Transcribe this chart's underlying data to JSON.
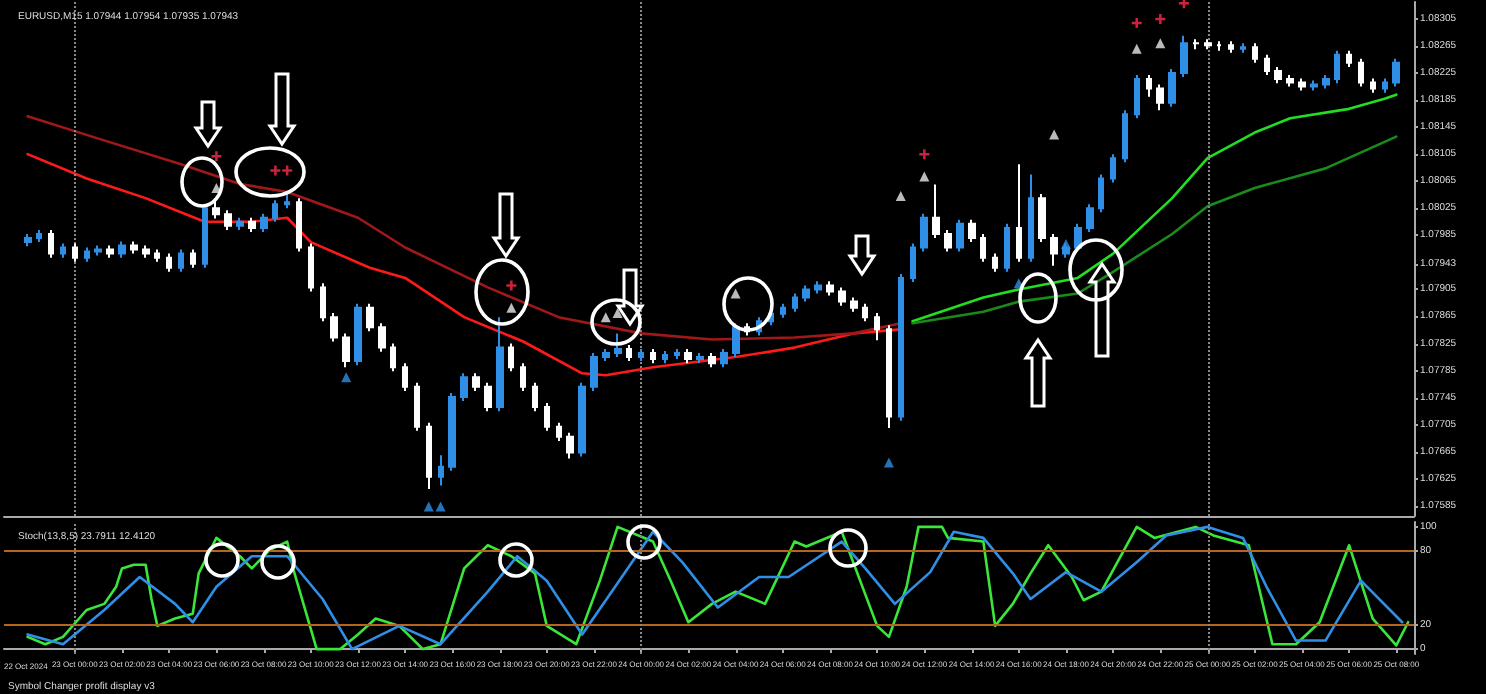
{
  "chart_data": [
    {
      "type": "candlestick",
      "title": "EURUSD,M15 1.07944 1.07954 1.07935 1.07943",
      "x": [
        "2024-10-22T22:00",
        "2024-10-22T22:30",
        "2024-10-22T23:00",
        "2024-10-22T23:30",
        "2024-10-23T00:00",
        "2024-10-23T00:30",
        "2024-10-23T01:00",
        "2024-10-23T01:30",
        "2024-10-23T02:00",
        "2024-10-23T02:30",
        "2024-10-23T03:00",
        "2024-10-23T03:30",
        "2024-10-23T04:00",
        "2024-10-23T04:30",
        "2024-10-23T05:00",
        "2024-10-23T05:30",
        "2024-10-23T06:00",
        "2024-10-23T06:30",
        "2024-10-23T07:00",
        "2024-10-23T07:30",
        "2024-10-23T08:00",
        "2024-10-23T08:30",
        "2024-10-23T09:00",
        "2024-10-23T09:30",
        "2024-10-23T10:00",
        "2024-10-23T10:30",
        "2024-10-23T11:00",
        "2024-10-23T11:30",
        "2024-10-23T12:00",
        "2024-10-23T12:30",
        "2024-10-23T13:00",
        "2024-10-23T13:30",
        "2024-10-23T14:00",
        "2024-10-23T14:30",
        "2024-10-23T15:00",
        "2024-10-23T15:30",
        "2024-10-23T16:00",
        "2024-10-23T16:30",
        "2024-10-23T17:00",
        "2024-10-23T17:30",
        "2024-10-23T18:00",
        "2024-10-23T18:30",
        "2024-10-23T19:00",
        "2024-10-23T19:30",
        "2024-10-23T20:00",
        "2024-10-23T20:30",
        "2024-10-23T21:00",
        "2024-10-23T21:30",
        "2024-10-23T22:00",
        "2024-10-23T22:30",
        "2024-10-23T23:00",
        "2024-10-23T23:30",
        "2024-10-24T00:00",
        "2024-10-24T00:30",
        "2024-10-24T01:00",
        "2024-10-24T01:30",
        "2024-10-24T02:00",
        "2024-10-24T02:30",
        "2024-10-24T03:00",
        "2024-10-24T03:30",
        "2024-10-24T04:00",
        "2024-10-24T04:30",
        "2024-10-24T05:00",
        "2024-10-24T05:30",
        "2024-10-24T06:00",
        "2024-10-24T06:30",
        "2024-10-24T07:00",
        "2024-10-24T07:30",
        "2024-10-24T08:00",
        "2024-10-24T08:30",
        "2024-10-24T09:00",
        "2024-10-24T09:30",
        "2024-10-24T10:00",
        "2024-10-24T10:30",
        "2024-10-24T11:00",
        "2024-10-24T11:30",
        "2024-10-24T12:00",
        "2024-10-24T12:30",
        "2024-10-24T13:00",
        "2024-10-24T13:30",
        "2024-10-24T14:00",
        "2024-10-24T14:30",
        "2024-10-24T15:00",
        "2024-10-24T15:30",
        "2024-10-24T16:00",
        "2024-10-24T16:30",
        "2024-10-24T17:00",
        "2024-10-24T17:30",
        "2024-10-24T18:00",
        "2024-10-24T18:30",
        "2024-10-24T19:00",
        "2024-10-24T19:30",
        "2024-10-24T20:00",
        "2024-10-24T20:30",
        "2024-10-24T21:00",
        "2024-10-24T21:30",
        "2024-10-24T22:00",
        "2024-10-24T22:30",
        "2024-10-24T23:00",
        "2024-10-24T23:30",
        "2024-10-25T00:00",
        "2024-10-25T00:30",
        "2024-10-25T01:00",
        "2024-10-25T01:30",
        "2024-10-25T02:00",
        "2024-10-25T02:30",
        "2024-10-25T03:00",
        "2024-10-25T03:30",
        "2024-10-25T04:00",
        "2024-10-25T04:30",
        "2024-10-25T05:00",
        "2024-10-25T05:30",
        "2024-10-25T06:00",
        "2024-10-25T06:30",
        "2024-10-25T07:00",
        "2024-10-25T07:30",
        "2024-10-25T08:00"
      ],
      "ohlc": [
        [
          1.07975,
          1.07987,
          1.07969,
          1.07981
        ],
        [
          1.07981,
          1.07993,
          1.07975,
          1.07987
        ],
        [
          1.07987,
          1.07993,
          1.07952,
          1.07958
        ],
        [
          1.07958,
          1.07973,
          1.07952,
          1.07967
        ],
        [
          1.07967,
          1.07973,
          1.07946,
          1.07952
        ],
        [
          1.07952,
          1.07967,
          1.07946,
          1.07961
        ],
        [
          1.07961,
          1.0797,
          1.07955,
          1.07964
        ],
        [
          1.07964,
          1.0797,
          1.07952,
          1.07958
        ],
        [
          1.07958,
          1.07976,
          1.07952,
          1.0797
        ],
        [
          1.0797,
          1.07976,
          1.07958,
          1.07964
        ],
        [
          1.07964,
          1.0797,
          1.07952,
          1.07958
        ],
        [
          1.07958,
          1.07964,
          1.07946,
          1.07952
        ],
        [
          1.07952,
          1.07958,
          1.07931,
          1.07937
        ],
        [
          1.07937,
          1.07964,
          1.07931,
          1.07958
        ],
        [
          1.07958,
          1.07964,
          1.07937,
          1.07943
        ],
        [
          1.07943,
          1.08031,
          1.07937,
          1.08025
        ],
        [
          1.08025,
          1.0804,
          1.0801,
          1.08016
        ],
        [
          1.08016,
          1.08022,
          1.07993,
          1.07999
        ],
        [
          1.07999,
          1.08011,
          1.07993,
          1.08005
        ],
        [
          1.08005,
          1.08011,
          1.0799,
          1.07996
        ],
        [
          1.07996,
          1.08017,
          1.0799,
          1.08011
        ],
        [
          1.08011,
          1.08037,
          1.08005,
          1.08031
        ],
        [
          1.08031,
          1.08046,
          1.08025,
          1.08034
        ],
        [
          1.08034,
          1.0804,
          1.07961,
          1.07967
        ],
        [
          1.07967,
          1.07973,
          1.07902,
          1.07908
        ],
        [
          1.07908,
          1.07914,
          1.07858,
          1.07864
        ],
        [
          1.07864,
          1.0787,
          1.07828,
          1.07834
        ],
        [
          1.07834,
          1.0784,
          1.0779,
          1.07799
        ],
        [
          1.07799,
          1.07884,
          1.07793,
          1.07878
        ],
        [
          1.07878,
          1.07884,
          1.07843,
          1.07849
        ],
        [
          1.07849,
          1.07855,
          1.07813,
          1.07819
        ],
        [
          1.07819,
          1.07825,
          1.07784,
          1.0779
        ],
        [
          1.0779,
          1.07796,
          1.07755,
          1.07761
        ],
        [
          1.07761,
          1.07767,
          1.07696,
          1.07702
        ],
        [
          1.07702,
          1.07708,
          1.0761,
          1.07628
        ],
        [
          1.07628,
          1.0766,
          1.07615,
          1.07643
        ],
        [
          1.07643,
          1.07752,
          1.07637,
          1.07746
        ],
        [
          1.07746,
          1.07781,
          1.0774,
          1.07775
        ],
        [
          1.07775,
          1.07781,
          1.07755,
          1.07761
        ],
        [
          1.07761,
          1.07767,
          1.07725,
          1.07731
        ],
        [
          1.07731,
          1.07864,
          1.07725,
          1.07819
        ],
        [
          1.07819,
          1.07825,
          1.07784,
          1.0779
        ],
        [
          1.0779,
          1.07796,
          1.07755,
          1.07761
        ],
        [
          1.07761,
          1.07767,
          1.07725,
          1.07731
        ],
        [
          1.07731,
          1.07737,
          1.07696,
          1.07702
        ],
        [
          1.07702,
          1.07708,
          1.07681,
          1.07687
        ],
        [
          1.07687,
          1.07693,
          1.07655,
          1.07664
        ],
        [
          1.07664,
          1.07767,
          1.07658,
          1.07761
        ],
        [
          1.07761,
          1.07811,
          1.07755,
          1.07805
        ],
        [
          1.07805,
          1.07817,
          1.07799,
          1.07811
        ],
        [
          1.07811,
          1.0784,
          1.07805,
          1.07817
        ],
        [
          1.07817,
          1.07823,
          1.07799,
          1.07805
        ],
        [
          1.07805,
          1.07817,
          1.07799,
          1.07811
        ],
        [
          1.07811,
          1.07817,
          1.07796,
          1.07802
        ],
        [
          1.07802,
          1.07814,
          1.07796,
          1.07808
        ],
        [
          1.07808,
          1.07817,
          1.07802,
          1.07811
        ],
        [
          1.07811,
          1.07817,
          1.07796,
          1.07802
        ],
        [
          1.07802,
          1.07811,
          1.07796,
          1.07805
        ],
        [
          1.07805,
          1.07811,
          1.0779,
          1.07796
        ],
        [
          1.07796,
          1.07817,
          1.0779,
          1.07811
        ],
        [
          1.07811,
          1.07855,
          1.07805,
          1.07849
        ],
        [
          1.07849,
          1.07855,
          1.07837,
          1.07843
        ],
        [
          1.07843,
          1.07864,
          1.07837,
          1.07858
        ],
        [
          1.07858,
          1.07875,
          1.07852,
          1.07869
        ],
        [
          1.07869,
          1.07884,
          1.07863,
          1.07878
        ],
        [
          1.07878,
          1.07899,
          1.07872,
          1.07893
        ],
        [
          1.07893,
          1.07911,
          1.07887,
          1.07905
        ],
        [
          1.07905,
          1.07917,
          1.07899,
          1.07911
        ],
        [
          1.07911,
          1.07917,
          1.07896,
          1.07902
        ],
        [
          1.07902,
          1.07908,
          1.07881,
          1.07887
        ],
        [
          1.07887,
          1.07893,
          1.07872,
          1.07878
        ],
        [
          1.07878,
          1.07884,
          1.07858,
          1.07864
        ],
        [
          1.07864,
          1.0787,
          1.0783,
          1.07846
        ],
        [
          1.07846,
          1.07852,
          1.077,
          1.07717
        ],
        [
          1.07717,
          1.07928,
          1.07711,
          1.07922
        ],
        [
          1.07922,
          1.07973,
          1.07916,
          1.07967
        ],
        [
          1.07967,
          1.08017,
          1.07961,
          1.08011
        ],
        [
          1.08011,
          1.0806,
          1.07981,
          1.07987
        ],
        [
          1.07987,
          1.07993,
          1.07961,
          1.07967
        ],
        [
          1.07967,
          1.08008,
          1.07961,
          1.08002
        ],
        [
          1.08002,
          1.08008,
          1.07975,
          1.07981
        ],
        [
          1.07981,
          1.07987,
          1.07946,
          1.07952
        ],
        [
          1.07952,
          1.07958,
          1.07931,
          1.07937
        ],
        [
          1.07937,
          1.08002,
          1.07931,
          1.07996
        ],
        [
          1.07996,
          1.0809,
          1.07946,
          1.07952
        ],
        [
          1.07952,
          1.08075,
          1.07946,
          1.0804
        ],
        [
          1.0804,
          1.08046,
          1.07975,
          1.07981
        ],
        [
          1.07981,
          1.07987,
          1.0794,
          1.07958
        ],
        [
          1.07958,
          1.07973,
          1.07952,
          1.07967
        ],
        [
          1.07967,
          1.08002,
          1.07961,
          1.07996
        ],
        [
          1.07996,
          1.08031,
          1.0799,
          1.08025
        ],
        [
          1.08025,
          1.08075,
          1.08019,
          1.08069
        ],
        [
          1.08069,
          1.08105,
          1.08063,
          1.08099
        ],
        [
          1.08099,
          1.0817,
          1.08093,
          1.08164
        ],
        [
          1.08164,
          1.08222,
          1.08158,
          1.08216
        ],
        [
          1.08216,
          1.08222,
          1.0819,
          1.08202
        ],
        [
          1.08202,
          1.08208,
          1.0817,
          1.08181
        ],
        [
          1.08181,
          1.08231,
          1.08175,
          1.08225
        ],
        [
          1.08225,
          1.0828,
          1.08219,
          1.08269
        ],
        [
          1.08269,
          1.08275,
          1.0826,
          1.08269
        ],
        [
          1.08269,
          1.08275,
          1.0826,
          1.08266
        ],
        [
          1.08266,
          1.08272,
          1.08258,
          1.08266
        ],
        [
          1.08266,
          1.08272,
          1.08255,
          1.08261
        ],
        [
          1.08261,
          1.08269,
          1.08255,
          1.08263
        ],
        [
          1.08263,
          1.08269,
          1.0824,
          1.08246
        ],
        [
          1.08246,
          1.08252,
          1.08222,
          1.08228
        ],
        [
          1.08228,
          1.08234,
          1.0821,
          1.08216
        ],
        [
          1.08216,
          1.08222,
          1.08205,
          1.08211
        ],
        [
          1.08211,
          1.08217,
          1.08199,
          1.08205
        ],
        [
          1.08205,
          1.08214,
          1.08199,
          1.08208
        ],
        [
          1.08208,
          1.08222,
          1.08202,
          1.08216
        ],
        [
          1.08216,
          1.08258,
          1.0821,
          1.08252
        ],
        [
          1.08252,
          1.08258,
          1.08234,
          1.0824
        ],
        [
          1.0824,
          1.08246,
          1.08205,
          1.08211
        ],
        [
          1.08211,
          1.08217,
          1.08196,
          1.08202
        ],
        [
          1.08202,
          1.08217,
          1.08196,
          1.08211
        ],
        [
          1.08211,
          1.08246,
          1.08205,
          1.0824
        ]
      ],
      "colors": [
        "#2f8fe6",
        "#2f8fe6",
        "#ffffff",
        "#2f8fe6",
        "#ffffff",
        "#2f8fe6",
        "#2f8fe6",
        "#ffffff",
        "#2f8fe6",
        "#ffffff",
        "#ffffff",
        "#ffffff",
        "#ffffff",
        "#2f8fe6",
        "#ffffff",
        "#2f8fe6",
        "#ffffff",
        "#ffffff",
        "#2f8fe6",
        "#ffffff",
        "#2f8fe6",
        "#2f8fe6",
        "#2f8fe6",
        "#ffffff",
        "#ffffff",
        "#ffffff",
        "#ffffff",
        "#ffffff",
        "#2f8fe6",
        "#ffffff",
        "#ffffff",
        "#ffffff",
        "#ffffff",
        "#ffffff",
        "#ffffff",
        "#2f8fe6",
        "#2f8fe6",
        "#2f8fe6",
        "#ffffff",
        "#ffffff",
        "#2f8fe6",
        "#ffffff",
        "#ffffff",
        "#ffffff",
        "#ffffff",
        "#ffffff",
        "#ffffff",
        "#2f8fe6",
        "#2f8fe6",
        "#2f8fe6",
        "#2f8fe6",
        "#ffffff",
        "#2f8fe6",
        "#ffffff",
        "#2f8fe6",
        "#2f8fe6",
        "#ffffff",
        "#2f8fe6",
        "#ffffff",
        "#2f8fe6",
        "#2f8fe6",
        "#ffffff",
        "#2f8fe6",
        "#2f8fe6",
        "#2f8fe6",
        "#2f8fe6",
        "#2f8fe6",
        "#2f8fe6",
        "#ffffff",
        "#ffffff",
        "#ffffff",
        "#ffffff",
        "#ffffff",
        "#ffffff",
        "#2f8fe6",
        "#2f8fe6",
        "#2f8fe6",
        "#ffffff",
        "#ffffff",
        "#2f8fe6",
        "#ffffff",
        "#ffffff",
        "#ffffff",
        "#2f8fe6",
        "#ffffff",
        "#2f8fe6",
        "#ffffff",
        "#ffffff",
        "#2f8fe6",
        "#2f8fe6",
        "#2f8fe6",
        "#2f8fe6",
        "#2f8fe6",
        "#2f8fe6",
        "#2f8fe6",
        "#ffffff",
        "#ffffff",
        "#2f8fe6",
        "#2f8fe6",
        "#ffffff",
        "#ffffff",
        "#ffffff",
        "#ffffff",
        "#2f8fe6",
        "#ffffff",
        "#ffffff",
        "#ffffff",
        "#ffffff",
        "#ffffff",
        "#2f8fe6",
        "#2f8fe6",
        "#2f8fe6",
        "#ffffff",
        "#ffffff",
        "#ffffff",
        "#2f8fe6",
        "#2f8fe6"
      ],
      "xlim": [
        "2024-10-22T21:00",
        "2024-10-25T08:45"
      ],
      "ylim": [
        1.0757,
        1.0833
      ],
      "yticks": [
        1.07585,
        1.07625,
        1.07665,
        1.07705,
        1.07745,
        1.07785,
        1.07825,
        1.07865,
        1.07905,
        {
          "value": 1.07943,
          "label": "1.07943"
        },
        1.07985,
        1.08025,
        1.08065,
        1.08105,
        1.08145,
        1.08185,
        1.08225,
        1.08265,
        1.08305
      ],
      "tick_labels": "y",
      "grid": false,
      "marker": "none",
      "line_style": "solid",
      "ref_lines": [
        {
          "axis": "x",
          "value": "2024-10-23T00:00",
          "line_style": "dotted",
          "color": "#888888"
        },
        {
          "axis": "x",
          "value": "2024-10-24T00:00",
          "line_style": "dotted",
          "color": "#888888"
        },
        {
          "axis": "x",
          "value": "2024-10-25T00:00",
          "line_style": "dotted",
          "color": "#888888"
        }
      ],
      "series": [
        {
          "type": "line",
          "color": "#ff1a1a",
          "x": [
            "2024-10-22T22:00",
            "2024-10-23T00:30",
            "2024-10-23T03:00",
            "2024-10-23T05:30",
            "2024-10-23T07:30",
            "2024-10-23T09:00",
            "2024-10-23T10:00",
            "2024-10-23T12:30",
            "2024-10-23T14:00",
            "2024-10-23T16:30",
            "2024-10-23T19:00",
            "2024-10-23T21:30",
            "2024-10-23T22:30",
            "2024-10-24T00:30",
            "2024-10-24T04:00",
            "2024-10-24T06:30",
            "2024-10-24T09:00",
            "2024-10-24T11:00"
          ],
          "values": [
            1.08105,
            1.08069,
            1.0804,
            1.08005,
            1.08005,
            1.08011,
            1.07975,
            1.07937,
            1.07922,
            1.07864,
            1.07828,
            1.07781,
            1.07778,
            1.0779,
            1.07805,
            1.07819,
            1.0784,
            1.07846
          ]
        },
        {
          "type": "line",
          "color": "#a01818",
          "x": [
            "2024-10-22T22:00",
            "2024-10-23T01:00",
            "2024-10-23T04:30",
            "2024-10-23T07:00",
            "2024-10-23T09:00",
            "2024-10-23T12:00",
            "2024-10-23T14:00",
            "2024-10-23T17:30",
            "2024-10-23T20:30",
            "2024-10-24T00:00",
            "2024-10-24T03:00",
            "2024-10-24T06:30",
            "2024-10-24T09:00",
            "2024-10-24T11:00"
          ],
          "values": [
            1.08161,
            1.08128,
            1.0809,
            1.08061,
            1.08049,
            1.08011,
            1.07967,
            1.07908,
            1.07864,
            1.0784,
            1.07831,
            1.07834,
            1.0784,
            1.07855
          ]
        },
        {
          "type": "line",
          "color": "#22dd22",
          "x": [
            "2024-10-24T11:30",
            "2024-10-24T14:30",
            "2024-10-24T16:00",
            "2024-10-24T18:30",
            "2024-10-24T20:00",
            "2024-10-24T22:30",
            "2024-10-25T00:00",
            "2024-10-25T02:00",
            "2024-10-25T03:30",
            "2024-10-25T06:00",
            "2024-10-25T07:30",
            "2024-10-25T08:00"
          ],
          "values": [
            1.07858,
            1.07893,
            1.07905,
            1.07922,
            1.07958,
            1.0804,
            1.08099,
            1.08137,
            1.08158,
            1.08172,
            1.08187,
            1.08193
          ]
        },
        {
          "type": "line",
          "color": "#1a8a1a",
          "x": [
            "2024-10-24T11:30",
            "2024-10-24T14:30",
            "2024-10-24T16:00",
            "2024-10-24T18:30",
            "2024-10-24T20:00",
            "2024-10-24T22:30",
            "2024-10-25T00:00",
            "2024-10-25T02:00",
            "2024-10-25T05:00",
            "2024-10-25T08:00"
          ],
          "values": [
            1.07855,
            1.07872,
            1.07887,
            1.07899,
            1.07931,
            1.07987,
            1.08028,
            1.08055,
            1.08084,
            1.08131
          ]
        },
        {
          "type": "scatter",
          "marker": "cross",
          "color": "#ff2a4a",
          "x": [
            "2024-10-23T06:00",
            "2024-10-23T08:30",
            "2024-10-23T09:00",
            "2024-10-23T18:30",
            "2024-10-24T12:00",
            "2024-10-24T21:00",
            "2024-10-24T22:00",
            "2024-10-24T23:00"
          ],
          "values": [
            1.08102,
            1.08081,
            1.08081,
            1.07911,
            1.08105,
            1.08299,
            1.08305,
            1.08328
          ]
        },
        {
          "type": "scatter",
          "marker": "triangle",
          "color": "#e8e8e8",
          "x": [
            "2024-10-23T06:00",
            "2024-10-23T18:30",
            "2024-10-23T22:30",
            "2024-10-23T23:00",
            "2024-10-24T04:00",
            "2024-10-24T11:00",
            "2024-10-24T12:00",
            "2024-10-24T17:30",
            "2024-10-24T21:00",
            "2024-10-24T22:00"
          ],
          "values": [
            1.08055,
            1.07878,
            1.07864,
            1.0787,
            1.07899,
            1.08043,
            1.08072,
            1.08134,
            1.08261,
            1.08269
          ]
        },
        {
          "type": "scatter",
          "marker": "triangle",
          "color": "#2f8fe6",
          "x": [
            "2024-10-23T11:30",
            "2024-10-23T15:00",
            "2024-10-23T15:30",
            "2024-10-24T10:30",
            "2024-10-24T16:00",
            "2024-10-24T18:00"
          ],
          "values": [
            1.07775,
            1.07584,
            1.07584,
            1.07649,
            1.07914,
            1.07972
          ]
        }
      ]
    },
    {
      "type": "line",
      "title": "Stoch(13,8,5) 23.7911 12.4120",
      "annotations": [
        "22 Oct 2024",
        "Symbol Changer profit display v3"
      ],
      "xlim": [
        "2024-10-22T21:00",
        "2024-10-25T08:45"
      ],
      "xticks": [
        {
          "value": "2024-10-23T00:00",
          "label": "23 Oct 00:00"
        },
        {
          "value": "2024-10-23T02:00",
          "label": "23 Oct 02:00"
        },
        {
          "value": "2024-10-23T04:00",
          "label": "23 Oct 04:00"
        },
        {
          "value": "2024-10-23T06:00",
          "label": "23 Oct 06:00"
        },
        {
          "value": "2024-10-23T08:00",
          "label": "23 Oct 08:00"
        },
        {
          "value": "2024-10-23T10:00",
          "label": "23 Oct 10:00"
        },
        {
          "value": "2024-10-23T12:00",
          "label": "23 Oct 12:00"
        },
        {
          "value": "2024-10-23T14:00",
          "label": "23 Oct 14:00"
        },
        {
          "value": "2024-10-23T16:00",
          "label": "23 Oct 16:00"
        },
        {
          "value": "2024-10-23T18:00",
          "label": "23 Oct 18:00"
        },
        {
          "value": "2024-10-23T20:00",
          "label": "23 Oct 20:00"
        },
        {
          "value": "2024-10-23T22:00",
          "label": "23 Oct 22:00"
        },
        {
          "value": "2024-10-24T00:00",
          "label": "24 Oct 00:00"
        },
        {
          "value": "2024-10-24T02:00",
          "label": "24 Oct 02:00"
        },
        {
          "value": "2024-10-24T04:00",
          "label": "24 Oct 04:00"
        },
        {
          "value": "2024-10-24T06:00",
          "label": "24 Oct 06:00"
        },
        {
          "value": "2024-10-24T08:00",
          "label": "24 Oct 08:00"
        },
        {
          "value": "2024-10-24T10:00",
          "label": "24 Oct 10:00"
        },
        {
          "value": "2024-10-24T12:00",
          "label": "24 Oct 12:00"
        },
        {
          "value": "2024-10-24T14:00",
          "label": "24 Oct 14:00"
        },
        {
          "value": "2024-10-24T16:00",
          "label": "24 Oct 16:00"
        },
        {
          "value": "2024-10-24T18:00",
          "label": "24 Oct 18:00"
        },
        {
          "value": "2024-10-24T20:00",
          "label": "24 Oct 20:00"
        },
        {
          "value": "2024-10-24T22:00",
          "label": "24 Oct 22:00"
        },
        {
          "value": "2024-10-25T00:00",
          "label": "25 Oct 00:00"
        },
        {
          "value": "2024-10-25T02:00",
          "label": "25 Oct 02:00"
        },
        {
          "value": "2024-10-25T04:00",
          "label": "25 Oct 04:00"
        },
        {
          "value": "2024-10-25T06:00",
          "label": "25 Oct 06:00"
        },
        {
          "value": "2024-10-25T08:00",
          "label": "25 Oct 08:00"
        }
      ],
      "ylim": [
        -4,
        104
      ],
      "yticks": [
        0,
        20,
        80,
        100
      ],
      "grid": false,
      "marker": "none",
      "line_style": "solid",
      "ref_lines": [
        {
          "axis": "y",
          "value": 80,
          "color": "#b5651d"
        },
        {
          "axis": "y",
          "value": 20,
          "color": "#b5651d"
        },
        {
          "axis": "x",
          "value": "2024-10-23T00:00",
          "line_style": "dotted",
          "color": "#888888"
        },
        {
          "axis": "x",
          "value": "2024-10-24T00:00",
          "line_style": "dotted",
          "color": "#888888"
        },
        {
          "axis": "x",
          "value": "2024-10-25T00:00",
          "line_style": "dotted",
          "color": "#888888"
        }
      ],
      "series": [
        {
          "color": "#39e639",
          "x": [
            "2024-10-22T22:00",
            "2024-10-22T22:45",
            "2024-10-22T23:30",
            "2024-10-23T00:30",
            "2024-10-23T01:15",
            "2024-10-23T01:45",
            "2024-10-23T02:00",
            "2024-10-23T02:30",
            "2024-10-23T03:00",
            "2024-10-23T03:15",
            "2024-10-23T03:30",
            "2024-10-23T04:15",
            "2024-10-23T05:00",
            "2024-10-23T05:15",
            "2024-10-23T06:00",
            "2024-10-23T07:00",
            "2024-10-23T07:30",
            "2024-10-23T08:15",
            "2024-10-23T09:00",
            "2024-10-23T09:15",
            "2024-10-23T10:15",
            "2024-10-23T11:15",
            "2024-10-23T12:00",
            "2024-10-23T12:45",
            "2024-10-23T13:45",
            "2024-10-23T14:45",
            "2024-10-23T15:30",
            "2024-10-23T16:30",
            "2024-10-23T17:30",
            "2024-10-23T18:30",
            "2024-10-23T19:30",
            "2024-10-23T20:00",
            "2024-10-23T21:15",
            "2024-10-23T22:15",
            "2024-10-23T23:00",
            "2024-10-24T00:30",
            "2024-10-24T01:15",
            "2024-10-24T02:00",
            "2024-10-24T03:00",
            "2024-10-24T04:00",
            "2024-10-24T05:15",
            "2024-10-24T06:30",
            "2024-10-24T07:00",
            "2024-10-24T08:30",
            "2024-10-24T10:00",
            "2024-10-24T10:30",
            "2024-10-24T11:15",
            "2024-10-24T11:45",
            "2024-10-24T12:45",
            "2024-10-24T13:00",
            "2024-10-24T14:30",
            "2024-10-24T15:00",
            "2024-10-24T15:45",
            "2024-10-24T16:30",
            "2024-10-24T17:15",
            "2024-10-24T18:15",
            "2024-10-24T18:45",
            "2024-10-24T19:30",
            "2024-10-24T21:00",
            "2024-10-24T21:45",
            "2024-10-24T23:30",
            "2024-10-25T00:15",
            "2024-10-25T01:45",
            "2024-10-25T02:45",
            "2024-10-25T03:45",
            "2024-10-25T04:45",
            "2024-10-25T06:00",
            "2024-10-25T07:00",
            "2024-10-25T08:00",
            "2024-10-25T08:30"
          ],
          "values": [
            10,
            4,
            10,
            32,
            37,
            51,
            66,
            69,
            69,
            41,
            19,
            25,
            29,
            62,
            91,
            76,
            66,
            81,
            88,
            66,
            0,
            0,
            12,
            25,
            19,
            0,
            4,
            66,
            85,
            76,
            62,
            19,
            4,
            56,
            100,
            88,
            56,
            22,
            37,
            47,
            37,
            88,
            84,
            96,
            19,
            10,
            51,
            100,
            100,
            91,
            88,
            19,
            37,
            62,
            85,
            59,
            40,
            47,
            100,
            91,
            100,
            93,
            85,
            4,
            4,
            22,
            85,
            25,
            3,
            22
          ]
        },
        {
          "color": "#2f8fe6",
          "x": [
            "2024-10-22T22:00",
            "2024-10-22T23:30",
            "2024-10-23T01:15",
            "2024-10-23T02:45",
            "2024-10-23T04:15",
            "2024-10-23T05:00",
            "2024-10-23T06:00",
            "2024-10-23T07:30",
            "2024-10-23T09:00",
            "2024-10-23T10:30",
            "2024-10-23T11:45",
            "2024-10-23T13:45",
            "2024-10-23T15:30",
            "2024-10-23T17:30",
            "2024-10-23T18:45",
            "2024-10-23T20:00",
            "2024-10-23T21:30",
            "2024-10-23T22:45",
            "2024-10-24T00:30",
            "2024-10-24T01:45",
            "2024-10-24T03:15",
            "2024-10-24T05:00",
            "2024-10-24T06:15",
            "2024-10-24T08:30",
            "2024-10-24T09:30",
            "2024-10-24T10:45",
            "2024-10-24T12:15",
            "2024-10-24T13:15",
            "2024-10-24T14:30",
            "2024-10-24T15:45",
            "2024-10-24T16:30",
            "2024-10-24T18:00",
            "2024-10-24T19:30",
            "2024-10-24T21:00",
            "2024-10-24T22:15",
            "2024-10-25T00:00",
            "2024-10-25T01:30",
            "2024-10-25T02:30",
            "2024-10-25T03:45",
            "2024-10-25T05:00",
            "2024-10-25T06:30",
            "2024-10-25T08:15"
          ],
          "values": [
            12,
            4,
            32,
            59,
            37,
            22,
            51,
            76,
            76,
            41,
            0,
            19,
            4,
            47,
            76,
            56,
            12,
            47,
            96,
            71,
            34,
            59,
            59,
            88,
            66,
            37,
            63,
            96,
            91,
            62,
            41,
            63,
            47,
            71,
            93,
            100,
            91,
            51,
            7,
            7,
            56,
            22
          ]
        }
      ]
    }
  ]
}
